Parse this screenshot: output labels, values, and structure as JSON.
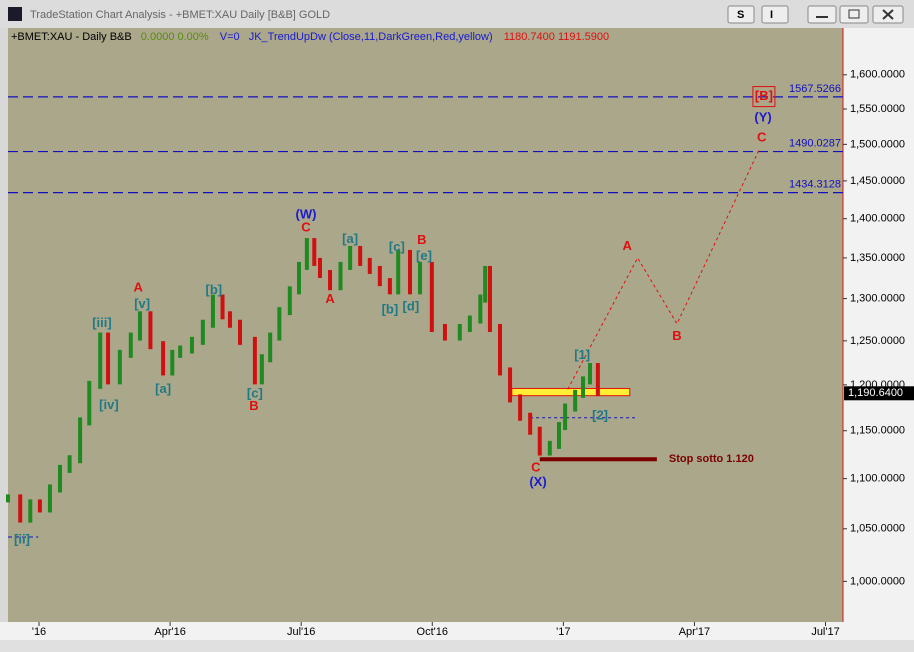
{
  "window": {
    "title": "TradeStation Chart Analysis - +BMET:XAU Daily [B&B] GOLD",
    "buttons": [
      "S",
      "I"
    ]
  },
  "chart_data": {
    "type": "price-bars",
    "info": {
      "symbol": "+BMET:XAU - Daily  B&B",
      "change": "0.0000  0.00%",
      "volume": "V=0",
      "indicator": "JK_TrendUpDw  (Close,11,DarkGreen,Red,yellow)",
      "prices": "1180.7400  1191.5900"
    },
    "log_scale": true,
    "xlim": [
      -0.71,
      18.4
    ],
    "xticks": [
      {
        "value": 0,
        "label": "'16"
      },
      {
        "value": 3,
        "label": "Apr'16"
      },
      {
        "value": 6,
        "label": "Jul'16"
      },
      {
        "value": 9,
        "label": "Oct'16"
      },
      {
        "value": 12,
        "label": "'17"
      },
      {
        "value": 15,
        "label": "Apr'17"
      },
      {
        "value": 18,
        "label": "Jul'17"
      }
    ],
    "ylim": [
      963,
      1671
    ],
    "yticks": [
      {
        "value": 1000,
        "label": "1,000.0000"
      },
      {
        "value": 1050,
        "label": "1,050.0000"
      },
      {
        "value": 1100,
        "label": "1,100.0000"
      },
      {
        "value": 1150,
        "label": "1,150.0000"
      },
      {
        "value": 1200,
        "label": "1,200.0000"
      },
      {
        "value": 1250,
        "label": "1,250.0000"
      },
      {
        "value": 1300,
        "label": "1,300.0000"
      },
      {
        "value": 1350,
        "label": "1,350.0000"
      },
      {
        "value": 1400,
        "label": "1,400.0000"
      },
      {
        "value": 1450,
        "label": "1,450.0000"
      },
      {
        "value": 1500,
        "label": "1,500.0000"
      },
      {
        "value": 1550,
        "label": "1,550.0000"
      },
      {
        "value": 1600,
        "label": "1,600.0000"
      }
    ],
    "up_color": "#1f8a1f",
    "down_color": "#d01010",
    "x": [
      -0.71,
      -0.43,
      -0.2,
      0.02,
      0.25,
      0.48,
      0.7,
      0.94,
      1.15,
      1.4,
      1.58,
      1.85,
      2.1,
      2.31,
      2.55,
      2.84,
      3.05,
      3.23,
      3.5,
      3.75,
      3.98,
      4.2,
      4.37,
      4.6,
      4.94,
      5.1,
      5.29,
      5.5,
      5.74,
      5.95,
      6.13,
      6.3,
      6.43,
      6.66,
      6.9,
      7.12,
      7.35,
      7.57,
      7.8,
      8.03,
      8.22,
      8.49,
      8.72,
      8.99,
      9.29,
      9.63,
      9.86,
      10.1,
      10.21,
      10.32,
      10.55,
      10.78,
      11.01,
      11.24,
      11.46,
      11.69,
      11.9,
      12.04,
      12.27,
      12.45,
      12.61,
      12.79
    ],
    "values": [
      1080,
      1060,
      1075,
      1070,
      1090,
      1110,
      1120,
      1160,
      1200,
      1255,
      1205,
      1235,
      1255,
      1280,
      1245,
      1215,
      1235,
      1240,
      1250,
      1270,
      1300,
      1280,
      1270,
      1250,
      1205,
      1230,
      1255,
      1285,
      1310,
      1340,
      1370,
      1345,
      1330,
      1315,
      1340,
      1360,
      1345,
      1335,
      1320,
      1310,
      1355,
      1310,
      1340,
      1265,
      1255,
      1265,
      1275,
      1300,
      1335,
      1265,
      1215,
      1185,
      1165,
      1150,
      1128,
      1135,
      1155,
      1175,
      1190,
      1205,
      1220,
      1192
    ],
    "projection": {
      "color": "#e01010",
      "x": [
        12.1,
        13.7,
        14.6,
        16.5
      ],
      "values": [
        1195,
        1350,
        1270,
        1495
      ]
    },
    "levels": [
      {
        "value": 1567.5266
      },
      {
        "value": 1490.0287
      },
      {
        "value": 1434.3128
      }
    ],
    "level_color": "#1010c0",
    "zone": {
      "low": 1188,
      "high": 1196,
      "x": [
        10.82,
        13.52
      ],
      "color": "#ffee33"
    },
    "support": {
      "value": 1164,
      "x": [
        11.24,
        13.64
      ]
    },
    "low_marker": {
      "value": 1042,
      "x": [
        -0.71,
        -0.02
      ]
    },
    "stop": {
      "text": "Stop sotto 1.120",
      "value": 1120,
      "x": [
        11.46,
        14.14
      ],
      "color": "#7a0000"
    },
    "last_price": {
      "value": 1190.64,
      "label": "1,190.6400"
    },
    "annotations": [
      {
        "text": "[ii]",
        "color": "#207a86",
        "x": -0.39,
        "price": 1039
      },
      {
        "text": "[iii]",
        "color": "#207a86",
        "x": 1.44,
        "price": 1270
      },
      {
        "text": "[iv]",
        "color": "#207a86",
        "x": 1.6,
        "price": 1177
      },
      {
        "text": "A",
        "color": "#e01010",
        "x": 2.27,
        "price": 1313
      },
      {
        "text": "[v]",
        "color": "#207a86",
        "x": 2.36,
        "price": 1293
      },
      {
        "text": "[a]",
        "color": "#207a86",
        "x": 2.84,
        "price": 1195
      },
      {
        "text": "[b]",
        "color": "#207a86",
        "x": 4.0,
        "price": 1310
      },
      {
        "text": "[c]",
        "color": "#207a86",
        "x": 4.94,
        "price": 1190
      },
      {
        "text": "B",
        "color": "#e01010",
        "x": 4.92,
        "price": 1176
      },
      {
        "text": "(W)",
        "color": "#1a1ad0",
        "x": 6.11,
        "price": 1405
      },
      {
        "text": "C",
        "color": "#e01010",
        "x": 6.11,
        "price": 1388
      },
      {
        "text": "A",
        "color": "#e01010",
        "x": 6.66,
        "price": 1299
      },
      {
        "text": "[a]",
        "color": "#207a86",
        "x": 7.12,
        "price": 1373
      },
      {
        "text": "[b]",
        "color": "#207a86",
        "x": 8.03,
        "price": 1286
      },
      {
        "text": "[c]",
        "color": "#207a86",
        "x": 8.19,
        "price": 1363
      },
      {
        "text": "B",
        "color": "#e01010",
        "x": 8.76,
        "price": 1372
      },
      {
        "text": "[e]",
        "color": "#207a86",
        "x": 8.81,
        "price": 1352
      },
      {
        "text": "[d]",
        "color": "#207a86",
        "x": 8.51,
        "price": 1290
      },
      {
        "text": "[1]",
        "color": "#207a86",
        "x": 12.43,
        "price": 1233
      },
      {
        "text": "[2]",
        "color": "#207a86",
        "x": 12.84,
        "price": 1166
      },
      {
        "text": "C",
        "color": "#e01010",
        "x": 11.37,
        "price": 1111
      },
      {
        "text": "(X)",
        "color": "#1a1ad0",
        "x": 11.42,
        "price": 1096
      },
      {
        "text": "A",
        "color": "#e01010",
        "x": 13.46,
        "price": 1364
      },
      {
        "text": "B",
        "color": "#e01010",
        "x": 14.6,
        "price": 1255
      },
      {
        "text": "C",
        "color": "#e01010",
        "x": 16.54,
        "price": 1509
      },
      {
        "text": "(Y)",
        "color": "#1a1ad0",
        "x": 16.57,
        "price": 1537
      },
      {
        "text": "[B]",
        "color": "#e01010",
        "x": 16.59,
        "price": 1568
      }
    ]
  }
}
